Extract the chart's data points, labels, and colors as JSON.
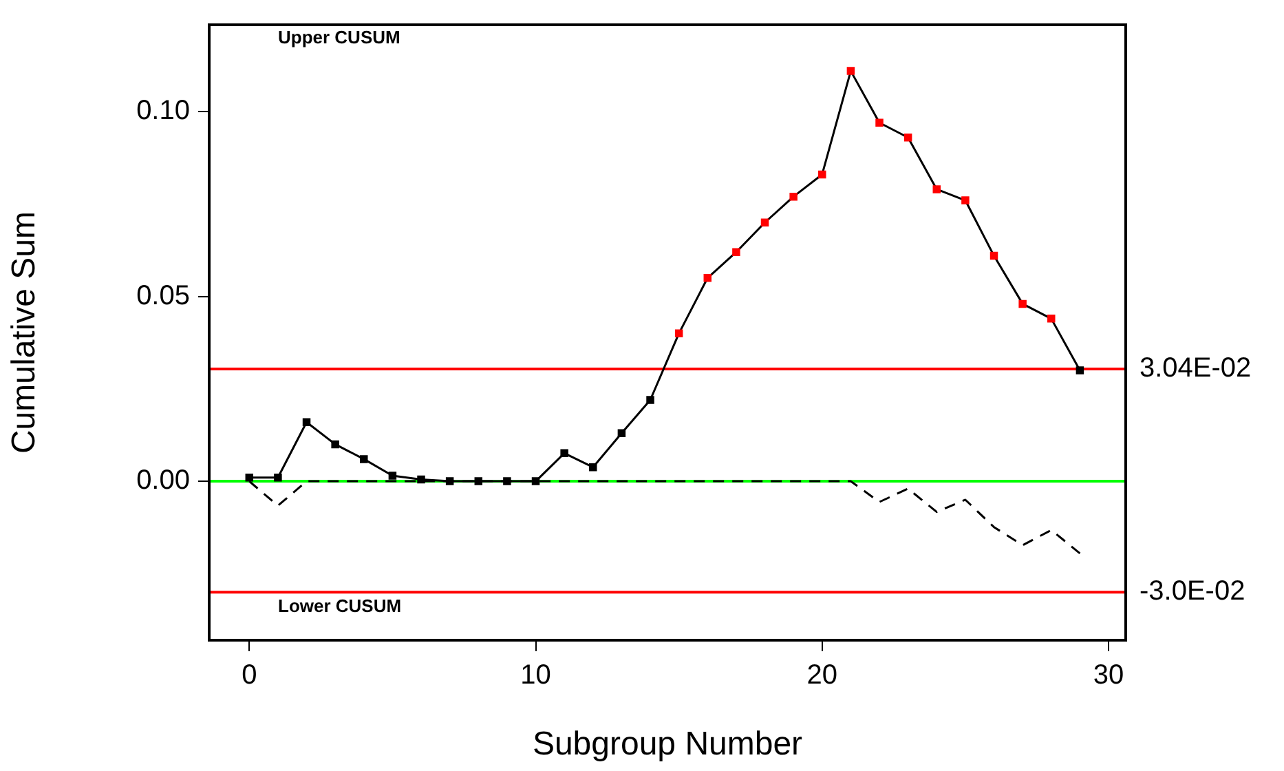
{
  "chart_data": {
    "type": "line",
    "xlabel": "Subgroup Number",
    "ylabel": "Cumulative Sum",
    "x": [
      0,
      1,
      2,
      3,
      4,
      5,
      6,
      7,
      8,
      9,
      10,
      11,
      12,
      13,
      14,
      15,
      16,
      17,
      18,
      19,
      20,
      21,
      22,
      23,
      24,
      25,
      26,
      27,
      28,
      29
    ],
    "series": [
      {
        "color": "#000000",
        "marker": "square",
        "line_style": "solid",
        "colors": [
          "#000000",
          "#000000",
          "#000000",
          "#000000",
          "#000000",
          "#000000",
          "#000000",
          "#000000",
          "#000000",
          "#000000",
          "#000000",
          "#000000",
          "#000000",
          "#000000",
          "#000000",
          "#ff0000",
          "#ff0000",
          "#ff0000",
          "#ff0000",
          "#ff0000",
          "#ff0000",
          "#ff0000",
          "#ff0000",
          "#ff0000",
          "#ff0000",
          "#ff0000",
          "#ff0000",
          "#ff0000",
          "#ff0000",
          "#000000"
        ],
        "values": [
          0.001,
          0.001,
          0.016,
          0.01,
          0.006,
          0.0015,
          0.0005,
          0,
          0,
          0,
          0,
          0.0076,
          0.0038,
          0.013,
          0.022,
          0.04,
          0.055,
          0.062,
          0.07,
          0.077,
          0.083,
          0.111,
          0.097,
          0.093,
          0.079,
          0.076,
          0.061,
          0.048,
          0.044,
          0.03
        ]
      },
      {
        "color": "#000000",
        "marker": "none",
        "line_style": "dashed",
        "values": [
          0,
          -0.0066,
          0,
          0,
          0,
          0,
          0,
          0,
          0,
          0,
          0,
          0,
          0,
          0,
          0,
          0,
          0,
          0,
          0,
          0,
          0,
          0,
          -0.0056,
          -0.002,
          -0.0083,
          -0.005,
          -0.0124,
          -0.0173,
          -0.0132,
          -0.0195
        ]
      }
    ],
    "xlim": [
      -1.4,
      30.6
    ],
    "xticks": [
      0,
      10,
      20,
      30
    ],
    "ylim": [
      -0.043,
      0.1235
    ],
    "yticks": [
      {
        "value": 0,
        "label": "0.00"
      },
      {
        "value": 0.05,
        "label": "0.05"
      },
      {
        "value": 0.1,
        "label": "0.10"
      }
    ],
    "ref_lines": [
      {
        "axis": "y",
        "value": 0.0304,
        "label": "3.04E-02",
        "color": "#ff0000"
      },
      {
        "axis": "y",
        "value": 0,
        "label": null,
        "color": "#00ff00"
      },
      {
        "axis": "y",
        "value": -0.03,
        "label": "-3.0E-02",
        "color": "#ff0000"
      }
    ],
    "annotations": [
      "Upper CUSUM",
      "Lower CUSUM"
    ],
    "grid": false,
    "legend": false
  }
}
